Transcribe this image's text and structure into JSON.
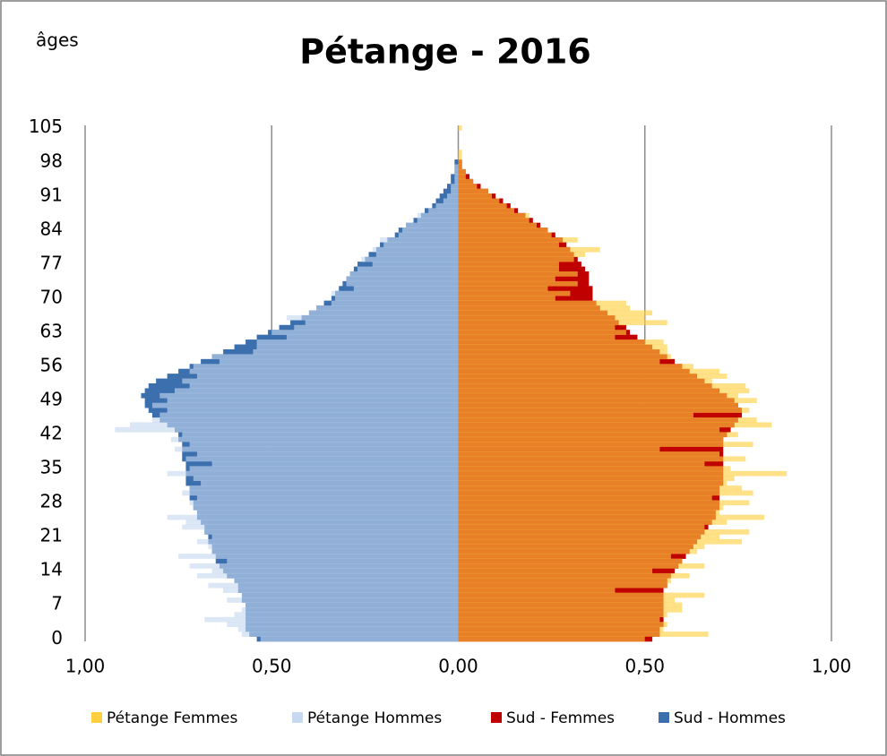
{
  "chart_data": {
    "type": "pyramid",
    "title": "Pétange - 2016",
    "y_label": "âges",
    "categories": [
      0,
      null,
      null,
      null,
      null,
      null,
      null,
      7,
      null,
      null,
      null,
      null,
      null,
      null,
      14,
      null,
      null,
      null,
      null,
      null,
      null,
      21,
      null,
      null,
      null,
      null,
      null,
      null,
      28,
      null,
      null,
      null,
      null,
      null,
      null,
      35,
      null,
      null,
      null,
      null,
      null,
      null,
      42,
      null,
      null,
      null,
      null,
      null,
      null,
      49,
      null,
      null,
      null,
      null,
      null,
      null,
      56,
      null,
      null,
      null,
      null,
      null,
      null,
      63,
      null,
      null,
      null,
      null,
      null,
      null,
      70,
      null,
      null,
      null,
      null,
      null,
      null,
      77,
      null,
      null,
      null,
      null,
      null,
      null,
      84,
      null,
      null,
      null,
      null,
      null,
      null,
      91,
      null,
      null,
      null,
      null,
      null,
      null,
      98,
      null,
      null,
      null,
      null,
      null,
      null,
      105
    ],
    "xlim": [
      -1,
      1
    ],
    "xticks": [
      {
        "value": -1,
        "label": "1,00"
      },
      {
        "value": -0.5,
        "label": "0,50"
      },
      {
        "value": 0,
        "label": "0,00"
      },
      {
        "value": 0.5,
        "label": "0,50"
      },
      {
        "value": 1,
        "label": "1,00"
      }
    ],
    "grid": true,
    "legend": "bottom",
    "series": [
      {
        "name": "Pétange Femmes",
        "color": "#ffcf3f",
        "group": "Pétange",
        "values": [
          0.5,
          0.67,
          0.55,
          0.56,
          0.54,
          0.56,
          0.6,
          0.6,
          0.58,
          0.66,
          0.42,
          0.56,
          0.57,
          0.62,
          0.52,
          0.66,
          0.6,
          0.57,
          0.64,
          0.66,
          0.76,
          0.7,
          0.78,
          0.66,
          0.72,
          0.82,
          0.7,
          0.71,
          0.78,
          0.68,
          0.79,
          0.76,
          0.72,
          0.74,
          0.88,
          0.73,
          0.66,
          0.77,
          0.7,
          0.54,
          0.79,
          0.71,
          0.75,
          0.7,
          0.84,
          0.8,
          0.63,
          0.78,
          0.75,
          0.8,
          0.75,
          0.78,
          0.77,
          0.68,
          0.72,
          0.7,
          0.63,
          0.54,
          0.57,
          0.56,
          0.56,
          0.55,
          0.42,
          0.45,
          0.42,
          0.56,
          0.5,
          0.52,
          0.46,
          0.45,
          0.26,
          0.3,
          0.24,
          0.32,
          0.26,
          0.32,
          0.27,
          0.27,
          0.31,
          0.34,
          0.38,
          0.27,
          0.32,
          0.25,
          0.24,
          0.21,
          0.19,
          0.19,
          0.15,
          0.13,
          0.11,
          0.09,
          0.08,
          0.05,
          0.04,
          0.02,
          0.02,
          0.01,
          0.01,
          0.01,
          0.01,
          0,
          0,
          0,
          0,
          0.01
        ]
      },
      {
        "name": "Pétange Hommes",
        "color": "#c6d9f1",
        "group": "Pétange",
        "values": [
          -0.53,
          -0.58,
          -0.59,
          -0.62,
          -0.68,
          -0.6,
          -0.58,
          -0.57,
          -0.62,
          -0.58,
          -0.63,
          -0.67,
          -0.6,
          -0.7,
          -0.66,
          -0.72,
          -0.62,
          -0.75,
          -0.66,
          -0.67,
          -0.7,
          -0.66,
          -0.68,
          -0.74,
          -0.73,
          -0.78,
          -0.7,
          -0.71,
          -0.72,
          -0.7,
          -0.74,
          -0.72,
          -0.69,
          -0.71,
          -0.78,
          -0.72,
          -0.66,
          -0.73,
          -0.7,
          -0.76,
          -0.72,
          -0.77,
          -0.74,
          -0.92,
          -0.88,
          -0.82,
          -0.8,
          -0.78,
          -0.82,
          -0.78,
          -0.8,
          -0.76,
          -0.72,
          -0.74,
          -0.7,
          -0.72,
          -0.71,
          -0.64,
          -0.66,
          -0.55,
          -0.54,
          -0.54,
          -0.46,
          -0.5,
          -0.44,
          -0.41,
          -0.46,
          -0.4,
          -0.38,
          -0.34,
          -0.33,
          -0.34,
          -0.28,
          -0.3,
          -0.3,
          -0.29,
          -0.27,
          -0.23,
          -0.26,
          -0.22,
          -0.23,
          -0.2,
          -0.21,
          -0.16,
          -0.15,
          -0.14,
          -0.11,
          -0.11,
          -0.08,
          -0.06,
          -0.04,
          -0.03,
          -0.02,
          -0.02,
          -0.01,
          -0.01,
          -0.01,
          -0.01,
          0,
          0,
          0,
          0,
          0,
          0,
          0,
          0
        ]
      },
      {
        "name": "Sud - Femmes",
        "color": "#c00000",
        "group": "Sud",
        "values": [
          0.52,
          0.54,
          0.54,
          0.55,
          0.55,
          0.55,
          0.55,
          0.55,
          0.55,
          0.55,
          0.55,
          0.56,
          0.56,
          0.57,
          0.58,
          0.59,
          0.6,
          0.61,
          0.62,
          0.63,
          0.64,
          0.65,
          0.66,
          0.67,
          0.68,
          0.69,
          0.69,
          0.7,
          0.7,
          0.7,
          0.7,
          0.7,
          0.71,
          0.71,
          0.71,
          0.71,
          0.71,
          0.71,
          0.71,
          0.71,
          0.71,
          0.71,
          0.72,
          0.73,
          0.74,
          0.75,
          0.76,
          0.76,
          0.75,
          0.74,
          0.72,
          0.7,
          0.68,
          0.66,
          0.64,
          0.62,
          0.6,
          0.58,
          0.56,
          0.54,
          0.52,
          0.5,
          0.48,
          0.46,
          0.45,
          0.43,
          0.42,
          0.4,
          0.38,
          0.37,
          0.36,
          0.36,
          0.36,
          0.35,
          0.35,
          0.35,
          0.34,
          0.33,
          0.32,
          0.31,
          0.3,
          0.29,
          0.28,
          0.26,
          0.24,
          0.22,
          0.2,
          0.18,
          0.16,
          0.14,
          0.12,
          0.1,
          0.08,
          0.06,
          0.04,
          0.03,
          0.02,
          0.01,
          0.01,
          0,
          0,
          0,
          0,
          0,
          0,
          0
        ]
      },
      {
        "name": "Sud - Hommes",
        "color": "#3c6fae",
        "group": "Sud",
        "values": [
          -0.54,
          -0.56,
          -0.57,
          -0.57,
          -0.57,
          -0.57,
          -0.57,
          -0.57,
          -0.58,
          -0.58,
          -0.59,
          -0.59,
          -0.6,
          -0.62,
          -0.63,
          -0.64,
          -0.65,
          -0.65,
          -0.66,
          -0.66,
          -0.67,
          -0.67,
          -0.68,
          -0.68,
          -0.69,
          -0.7,
          -0.7,
          -0.71,
          -0.71,
          -0.72,
          -0.72,
          -0.72,
          -0.73,
          -0.73,
          -0.73,
          -0.73,
          -0.73,
          -0.74,
          -0.74,
          -0.74,
          -0.74,
          -0.75,
          -0.75,
          -0.76,
          -0.78,
          -0.8,
          -0.82,
          -0.83,
          -0.84,
          -0.84,
          -0.85,
          -0.84,
          -0.83,
          -0.81,
          -0.78,
          -0.75,
          -0.72,
          -0.69,
          -0.66,
          -0.63,
          -0.6,
          -0.57,
          -0.54,
          -0.51,
          -0.48,
          -0.45,
          -0.42,
          -0.4,
          -0.38,
          -0.36,
          -0.34,
          -0.33,
          -0.32,
          -0.31,
          -0.3,
          -0.29,
          -0.28,
          -0.27,
          -0.25,
          -0.24,
          -0.22,
          -0.21,
          -0.19,
          -0.17,
          -0.16,
          -0.14,
          -0.12,
          -0.1,
          -0.09,
          -0.07,
          -0.06,
          -0.05,
          -0.04,
          -0.03,
          -0.02,
          -0.02,
          -0.01,
          -0.01,
          -0.01,
          0,
          0,
          0,
          0,
          0,
          0,
          0
        ]
      }
    ]
  }
}
